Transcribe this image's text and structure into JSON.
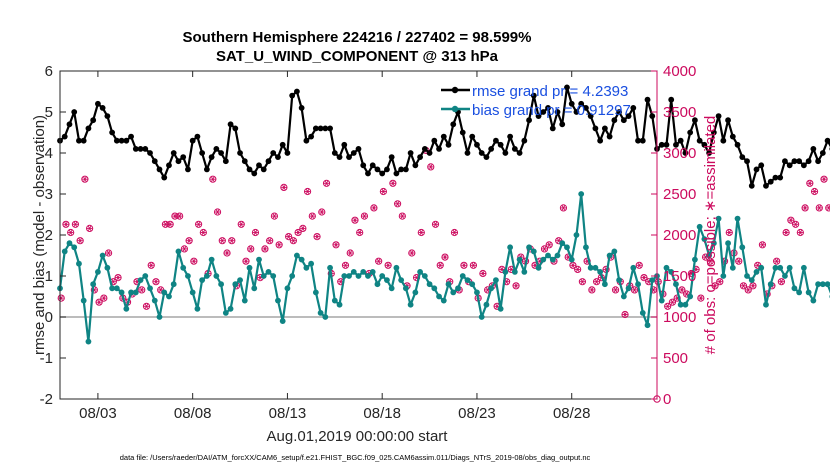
{
  "chart_data": {
    "type": "line",
    "title_line1": "Southern Hemisphere 224216 / 227402 = 98.599%",
    "title_line2": "SAT_U_WIND_COMPONENT @ 313 hPa",
    "ylabel_left": "rmse and bias (model - observation)",
    "ylabel_right": "# of obs: o=possible; ∗=assimilated",
    "xlabel": "Aug.01,2019 00:00:00 start",
    "footnote": "data file: /Users/raeder/DAI/ATM_forcXX/CAM6_setup/f.e21.FHIST_BGC.f09_025.CAM6assim.011/Diags_NTrS_2019-08/obs_diag_output.nc",
    "xlim": [
      1,
      32.5
    ],
    "ylim_left": [
      -2,
      6
    ],
    "ylim_right": [
      0,
      4000
    ],
    "x_ticks": [
      3,
      8,
      13,
      18,
      23,
      28
    ],
    "x_tick_labels": [
      "08/03",
      "08/08",
      "08/13",
      "08/18",
      "08/23",
      "08/28"
    ],
    "y_ticks_left": [
      -2,
      -1,
      0,
      1,
      2,
      3,
      4,
      5,
      6
    ],
    "y_ticks_right": [
      0,
      500,
      1000,
      1500,
      2000,
      2500,
      3000,
      3500,
      4000
    ],
    "legend": {
      "location": "top-right",
      "entries": [
        "rmse grand pr = 4.2393",
        "bias grand pr = 0.91297"
      ]
    },
    "colors": {
      "rmse": "#000000",
      "bias": "#0f8484",
      "obs": "#cc0a5e",
      "zero_line": "#a6a6a6"
    },
    "x_start": 1.0,
    "x_step": 0.25,
    "series": [
      {
        "name": "rmse",
        "axis": "left",
        "values": [
          4.3,
          4.4,
          4.7,
          5.0,
          4.3,
          4.3,
          4.6,
          4.8,
          5.2,
          5.1,
          4.9,
          4.5,
          4.3,
          4.3,
          4.3,
          4.4,
          4.1,
          4.1,
          4.1,
          4.0,
          3.8,
          3.6,
          3.4,
          3.7,
          4.0,
          3.8,
          3.9,
          3.6,
          4.3,
          4.4,
          4.0,
          3.6,
          3.9,
          4.1,
          4.0,
          3.8,
          4.7,
          4.6,
          4.0,
          3.8,
          3.6,
          3.5,
          3.7,
          3.6,
          3.8,
          4.0,
          3.9,
          4.2,
          4.0,
          5.4,
          5.5,
          5.1,
          4.3,
          4.4,
          4.6,
          4.6,
          4.6,
          4.6,
          4.0,
          3.9,
          4.2,
          3.9,
          4.0,
          4.1,
          3.7,
          3.5,
          3.7,
          3.6,
          3.5,
          3.6,
          3.9,
          3.5,
          3.6,
          3.6,
          4.0,
          3.7,
          3.9,
          4.1,
          4.0,
          4.3,
          4.1,
          4.4,
          4.2,
          4.7,
          5.0,
          4.5,
          4.0,
          4.4,
          4.2,
          4.0,
          3.9,
          4.1,
          4.3,
          4.2,
          4.0,
          4.4,
          4.1,
          4.0,
          4.3,
          4.8,
          5.4,
          4.9,
          5.0,
          5.1,
          4.6,
          5.0,
          4.7,
          5.6,
          5.2,
          5.0,
          5.2,
          5.1,
          4.9,
          4.6,
          4.3,
          4.6,
          4.4,
          4.8,
          5.0,
          4.8,
          4.9,
          5.1,
          4.3,
          4.3,
          5.3,
          4.9,
          4.1,
          4.2,
          4.2,
          5.3,
          4.2,
          4.3,
          4.0,
          4.5,
          4.8,
          4.3,
          4.2,
          4.0,
          4.5,
          4.9,
          4.3,
          4.8,
          4.4,
          4.2,
          3.9,
          3.8,
          3.2,
          3.6,
          3.7,
          3.2,
          3.3,
          3.4,
          3.4,
          3.8,
          3.7,
          3.8,
          3.8,
          3.7,
          3.8,
          4.1,
          3.8,
          4.0,
          4.3,
          4.1,
          4.8,
          4.2,
          4.6,
          4.3,
          4.1,
          4.2,
          4.1
        ]
      },
      {
        "name": "bias",
        "axis": "left",
        "values": [
          0.7,
          1.6,
          1.8,
          1.7,
          1.3,
          0.4,
          -0.6,
          0.8,
          1.1,
          1.5,
          1.2,
          0.7,
          0.7,
          0.6,
          0.2,
          0.6,
          0.6,
          0.9,
          1.0,
          0.7,
          0.4,
          0.0,
          0.6,
          0.5,
          0.8,
          1.6,
          1.2,
          1.0,
          0.6,
          0.2,
          0.9,
          1.0,
          1.4,
          1.0,
          0.8,
          0.1,
          0.2,
          0.8,
          0.9,
          0.4,
          1.2,
          0.7,
          1.4,
          1.0,
          1.1,
          1.0,
          0.4,
          -0.1,
          0.7,
          1.0,
          1.5,
          1.4,
          1.2,
          1.3,
          0.6,
          0.1,
          0.0,
          1.2,
          0.4,
          0.3,
          1.0,
          1.0,
          1.1,
          1.0,
          1.1,
          1.0,
          1.1,
          0.8,
          1.0,
          0.9,
          0.7,
          1.2,
          0.9,
          0.7,
          0.3,
          0.6,
          1.1,
          1.0,
          0.8,
          0.7,
          0.5,
          0.4,
          0.8,
          0.6,
          0.7,
          1.0,
          0.9,
          0.8,
          0.6,
          0.0,
          0.3,
          0.7,
          0.9,
          0.2,
          1.1,
          1.7,
          1.1,
          1.4,
          1.1,
          1.7,
          1.6,
          1.2,
          1.4,
          1.5,
          1.4,
          1.5,
          1.8,
          1.7,
          1.4,
          2.0,
          3.0,
          1.7,
          1.2,
          1.2,
          1.1,
          0.8,
          1.5,
          1.6,
          0.9,
          0.5,
          0.7,
          1.2,
          0.8,
          0.1,
          -0.2,
          0.9,
          1.0,
          0.4,
          1.2,
          1.1,
          0.8,
          0.3,
          0.3,
          0.5,
          1.4,
          2.2,
          1.9,
          1.5,
          1.8,
          2.4,
          1.0,
          1.8,
          1.2,
          2.4,
          1.7,
          1.0,
          0.9,
          1.1,
          1.2,
          0.3,
          0.8,
          1.2,
          1.2,
          1.0,
          1.2,
          0.7,
          0.6,
          1.2,
          0.6,
          0.4,
          0.8,
          0.8,
          0.8,
          0.5,
          0.5,
          0.8,
          1.2,
          1.1,
          1.1,
          1.1,
          1.0,
          0.8,
          1.2,
          1.2,
          1.2,
          0.7
        ]
      },
      {
        "name": "obs possible",
        "axis": "right",
        "marker": "circle",
        "values": [
          1200,
          2100,
          2000,
          2100,
          1900,
          2650,
          2050,
          1300,
          1150,
          1200,
          1750,
          1400,
          1450,
          1200,
          1150,
          1250,
          1400,
          1300,
          1100,
          1600,
          1400,
          1300,
          2100,
          2100,
          2200,
          2200,
          1800,
          1900,
          1650,
          2100,
          2000,
          1500,
          2650,
          2250,
          1900,
          1750,
          1900,
          1350,
          2100,
          1650,
          1800,
          2000,
          1450,
          1800,
          1900,
          2200,
          1850,
          2550,
          1950,
          1900,
          2000,
          2050,
          2500,
          2200,
          1950,
          2250,
          2600,
          1500,
          1850,
          1400,
          1600,
          1750,
          2150,
          2000,
          2200,
          1500,
          2300,
          1650,
          2500,
          1600,
          2600,
          2350,
          2200,
          1350,
          1750,
          1450,
          2000,
          3000,
          2800,
          2100,
          1600,
          1700,
          1400,
          2000,
          1300,
          1600,
          1400,
          1600,
          1200,
          1500,
          1300,
          1350,
          1100,
          1550,
          1400,
          1550,
          1350,
          1700,
          1650,
          1800,
          1600,
          1650,
          1800,
          1850,
          1650,
          1900,
          2300,
          1700,
          1600,
          1550,
          1400,
          1650,
          1300,
          1400,
          1450,
          1550,
          1700,
          1300,
          1400,
          1000,
          1350,
          1300,
          1600,
          1450,
          1400,
          1300,
          1400,
          1250,
          1100,
          1150,
          1200,
          1300,
          1250,
          1500,
          1550,
          1200,
          1700,
          1650,
          1350,
          1400,
          1650,
          2000,
          1750,
          1650,
          1350,
          1300,
          1350,
          1600,
          1850,
          1250,
          1350,
          1650,
          1400,
          2000,
          2150,
          2100,
          2000,
          2300,
          2600,
          2500,
          2300,
          2650,
          2300,
          2950,
          2950,
          2900,
          2750,
          3250,
          3300,
          3000,
          2650
        ]
      },
      {
        "name": "obs assimilated",
        "axis": "right",
        "marker": "asterisk",
        "values": [
          1200,
          2100,
          2000,
          2100,
          1900,
          2650,
          2050,
          1300,
          1150,
          1200,
          1750,
          1400,
          1450,
          1200,
          1150,
          1250,
          1400,
          1300,
          1100,
          1600,
          1400,
          1300,
          2100,
          2100,
          2200,
          2200,
          1800,
          1900,
          1650,
          2100,
          2000,
          1500,
          2650,
          2250,
          1900,
          1750,
          1900,
          1350,
          2100,
          1650,
          1800,
          2000,
          1450,
          1800,
          1900,
          2200,
          1850,
          2550,
          1950,
          1900,
          2000,
          2050,
          2500,
          2200,
          1950,
          2250,
          2600,
          1500,
          1850,
          1400,
          1600,
          1750,
          2150,
          2000,
          2200,
          1500,
          2300,
          1650,
          2500,
          1600,
          2600,
          2350,
          2200,
          1350,
          1750,
          1450,
          2000,
          3000,
          2800,
          2100,
          1600,
          1700,
          1400,
          2000,
          1300,
          1600,
          1400,
          1600,
          1200,
          1500,
          1300,
          1350,
          1100,
          1550,
          1400,
          1550,
          1350,
          1700,
          1650,
          1800,
          1600,
          1650,
          1800,
          1850,
          1650,
          1900,
          2300,
          1700,
          1600,
          1550,
          1400,
          1650,
          1300,
          1400,
          1450,
          1550,
          1700,
          1300,
          1400,
          1000,
          1350,
          1300,
          1600,
          1450,
          1400,
          1300,
          1400,
          1250,
          1100,
          1150,
          1200,
          1300,
          1250,
          1500,
          1550,
          1200,
          1700,
          1650,
          1350,
          1400,
          1650,
          2000,
          1750,
          1650,
          1350,
          1300,
          1350,
          1600,
          1850,
          1250,
          1350,
          1650,
          1400,
          2000,
          2150,
          2100,
          2000,
          2300,
          2600,
          2500,
          2300,
          2650,
          2300,
          2950,
          2950,
          2900,
          2750,
          3250,
          3300,
          3000,
          2650
        ]
      }
    ],
    "end_marker": {
      "x": 32.5,
      "y": 0,
      "axis": "right"
    }
  }
}
